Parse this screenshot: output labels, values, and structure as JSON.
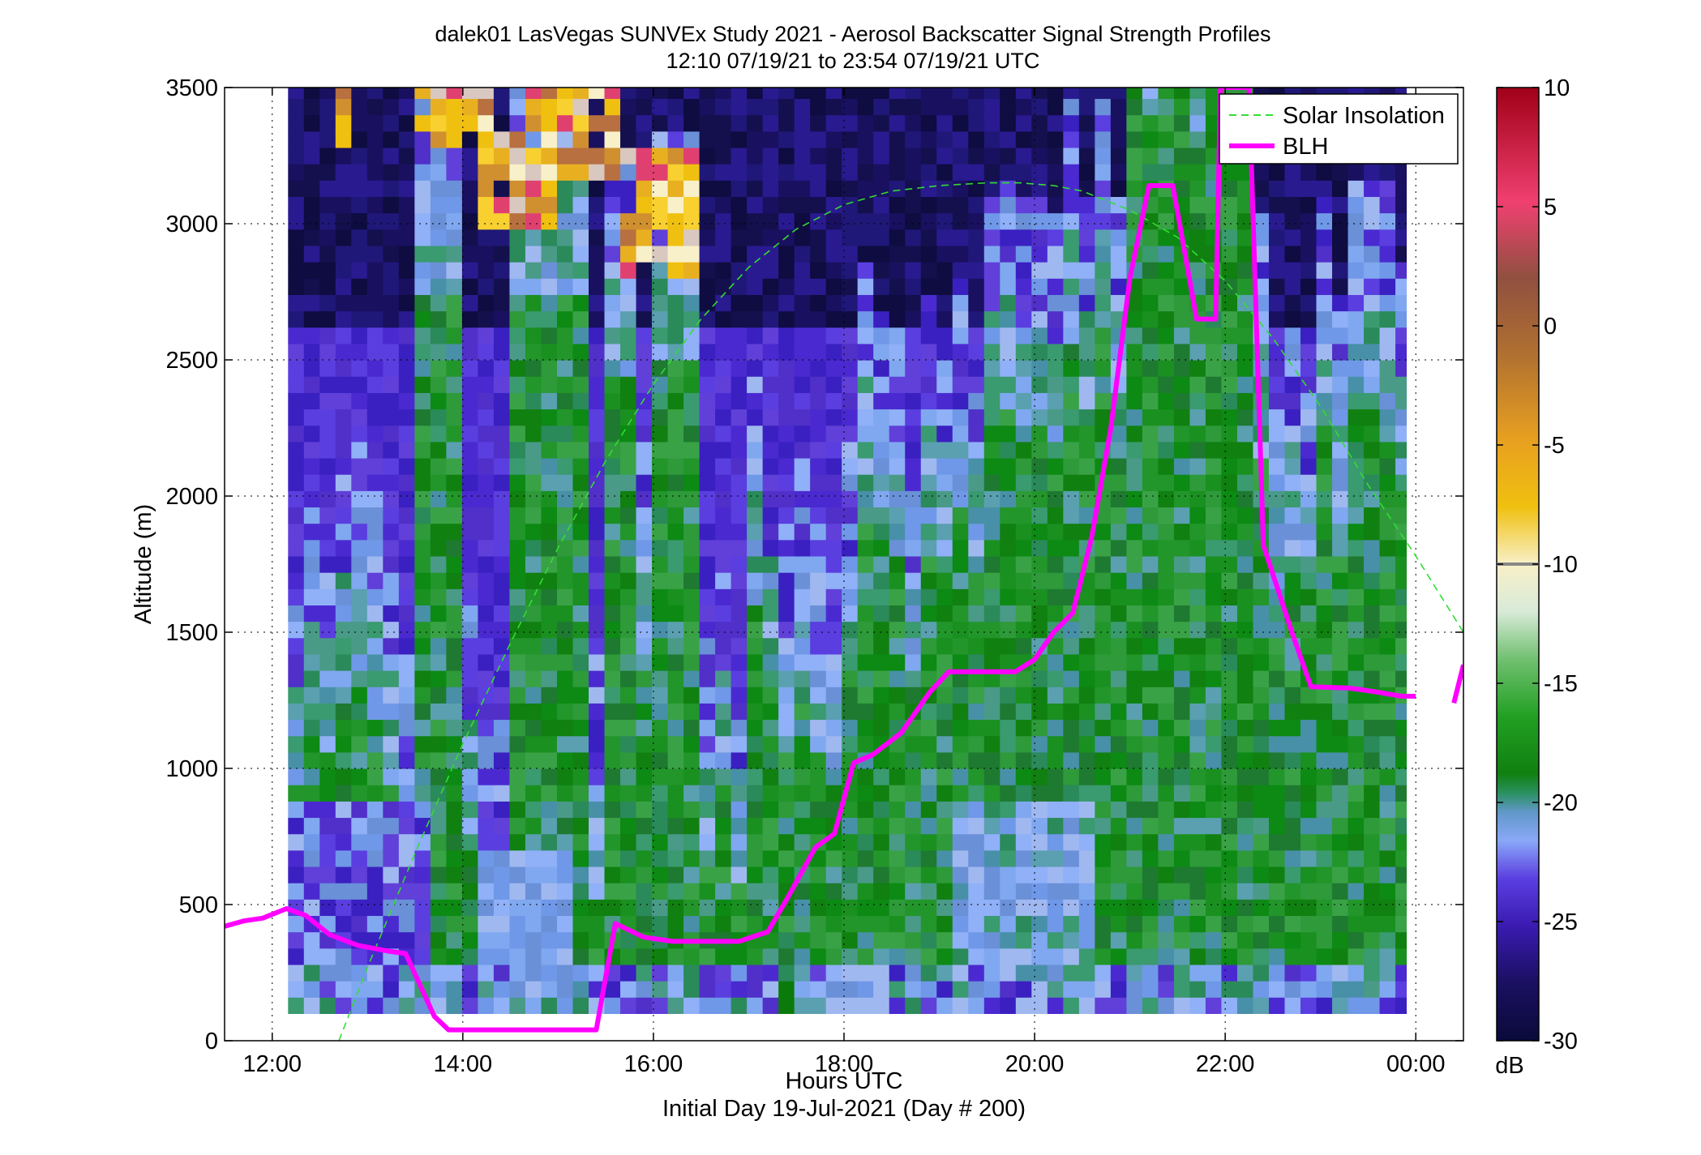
{
  "chart_data": {
    "type": "heatmap",
    "title": "dalek01 LasVegas SUNVEx Study 2021 - Aerosol Backscatter Signal Strength Profiles",
    "subtitle": "12:10 07/19/21 to 23:54 07/19/21  UTC",
    "xlabel": "Hours UTC",
    "xlabel2": "Initial Day 19-Jul-2021 (Day # 200)",
    "ylabel": "Altitude (m)",
    "xlim": [
      11.5,
      24.5
    ],
    "ylim": [
      0,
      3500
    ],
    "x_ticks": [
      {
        "value": 12,
        "label": "12:00"
      },
      {
        "value": 14,
        "label": "14:00"
      },
      {
        "value": 16,
        "label": "16:00"
      },
      {
        "value": 18,
        "label": "18:00"
      },
      {
        "value": 20,
        "label": "20:00"
      },
      {
        "value": 22,
        "label": "22:00"
      },
      {
        "value": 24,
        "label": "00:00"
      }
    ],
    "y_ticks": [
      {
        "value": 0,
        "label": "0"
      },
      {
        "value": 500,
        "label": "500"
      },
      {
        "value": 1000,
        "label": "1000"
      },
      {
        "value": 1500,
        "label": "1500"
      },
      {
        "value": 2000,
        "label": "2000"
      },
      {
        "value": 2500,
        "label": "2500"
      },
      {
        "value": 3000,
        "label": "3000"
      },
      {
        "value": 3500,
        "label": "3500"
      }
    ],
    "grid": true,
    "colorbar": {
      "range": [
        -30,
        10
      ],
      "ticks": [
        {
          "value": 10,
          "label": "10"
        },
        {
          "value": 5,
          "label": "5"
        },
        {
          "value": 0,
          "label": "0"
        },
        {
          "value": -5,
          "label": "-5"
        },
        {
          "value": -10,
          "label": "-10"
        },
        {
          "value": -15,
          "label": "-15"
        },
        {
          "value": -20,
          "label": "-20"
        },
        {
          "value": -25,
          "label": "-25"
        },
        {
          "value": -30,
          "label": "-30"
        }
      ],
      "unit": "dB"
    },
    "heatmap": {
      "time_start": 12.166,
      "time_end": 23.9,
      "cell_hours": 0.166,
      "alt_start": 100,
      "alt_top": 3500,
      "cell_alt": 60,
      "blh_segments": [
        {
          "t0": 12.166,
          "t1": 13.75,
          "h": 330
        },
        {
          "t0": 13.75,
          "t1": 15.5,
          "h": 40
        },
        {
          "t0": 15.5,
          "t1": 17.0,
          "h": 380
        },
        {
          "t0": 17.0,
          "t1": 18.0,
          "h": 700
        },
        {
          "t0": 18.0,
          "t1": 19.0,
          "h": 1100
        },
        {
          "t0": 19.0,
          "t1": 20.0,
          "h": 1350
        },
        {
          "t0": 20.0,
          "t1": 21.0,
          "h": 1900
        },
        {
          "t0": 21.0,
          "t1": 21.7,
          "h": 2900
        },
        {
          "t0": 21.7,
          "t1": 22.3,
          "h": 3000
        },
        {
          "t0": 22.3,
          "t1": 23.9,
          "h": 1300
        }
      ],
      "tall_columns": [
        {
          "t0": 13.5,
          "t1": 14.0,
          "h": 3000
        },
        {
          "t0": 14.5,
          "t1": 15.25,
          "h": 3000
        },
        {
          "t0": 15.5,
          "t1": 15.75,
          "h": 2700
        },
        {
          "t0": 16.0,
          "t1": 16.4,
          "h": 2750
        },
        {
          "t0": 21.7,
          "t1": 21.9,
          "h": 3400
        },
        {
          "t0": 22.2,
          "t1": 22.35,
          "h": 3400
        }
      ],
      "yellow_patches": [
        {
          "t0": 12.7,
          "t1": 12.9,
          "y0": 3280,
          "y1": 3500
        },
        {
          "t0": 13.5,
          "t1": 14.4,
          "y0": 3300,
          "y1": 3500
        },
        {
          "t0": 14.1,
          "t1": 15.0,
          "y0": 3000,
          "y1": 3330
        },
        {
          "t0": 14.6,
          "t1": 15.7,
          "y0": 3150,
          "y1": 3500
        },
        {
          "t0": 15.7,
          "t1": 16.4,
          "y0": 2800,
          "y1": 3300
        }
      ],
      "bottom_dark_column": {
        "t0": 17.3,
        "t1": 17.5
      }
    },
    "series": [
      {
        "name": "Solar Insolation",
        "style": "dashed",
        "color": "#33dd33",
        "x": [
          12.7,
          13.0,
          13.5,
          14.0,
          14.5,
          15.0,
          15.5,
          16.0,
          16.5,
          17.0,
          17.5,
          18.0,
          18.5,
          19.0,
          19.5,
          19.85,
          20.2,
          20.5,
          21.0,
          21.5,
          22.0,
          22.5,
          23.0,
          23.5,
          24.0,
          24.5
        ],
        "y": [
          0,
          270,
          690,
          1090,
          1460,
          1810,
          2130,
          2410,
          2650,
          2840,
          2980,
          3070,
          3120,
          3140,
          3150,
          3150,
          3140,
          3120,
          3050,
          2950,
          2790,
          2580,
          2330,
          2040,
          1780,
          1500
        ]
      },
      {
        "name": "BLH",
        "style": "solid",
        "color": "#ff00ff",
        "x": [
          11.5,
          11.7,
          11.9,
          12.15,
          12.35,
          12.6,
          12.9,
          13.2,
          13.4,
          13.7,
          13.85,
          14.0,
          14.5,
          15.0,
          15.4,
          15.6,
          15.9,
          16.2,
          16.6,
          16.9,
          17.2,
          17.4,
          17.7,
          17.9,
          18.1,
          18.3,
          18.6,
          18.9,
          19.1,
          19.4,
          19.8,
          20.0,
          20.2,
          20.4,
          20.6,
          20.8,
          21.0,
          21.2,
          21.45,
          21.7,
          21.9,
          21.95,
          22.25,
          22.4,
          22.7,
          22.9,
          23.3,
          23.6,
          23.85,
          24.0
        ],
        "y": [
          420,
          440,
          450,
          485,
          460,
          390,
          350,
          330,
          320,
          90,
          40,
          40,
          40,
          40,
          40,
          430,
          380,
          365,
          365,
          365,
          400,
          520,
          710,
          760,
          1020,
          1050,
          1130,
          1280,
          1355,
          1355,
          1355,
          1400,
          1500,
          1570,
          1850,
          2250,
          2800,
          3140,
          3140,
          2650,
          2650,
          3500,
          3500,
          1820,
          1500,
          1300,
          1295,
          1280,
          1265,
          1265
        ]
      },
      {
        "name": "",
        "style": "solid",
        "color": "#ff00ff",
        "x": [
          24.4,
          24.5
        ],
        "y": [
          1240,
          1380
        ]
      }
    ],
    "legend": {
      "position": "top-right",
      "entries": [
        "Solar Insolation",
        "BLH"
      ]
    }
  }
}
